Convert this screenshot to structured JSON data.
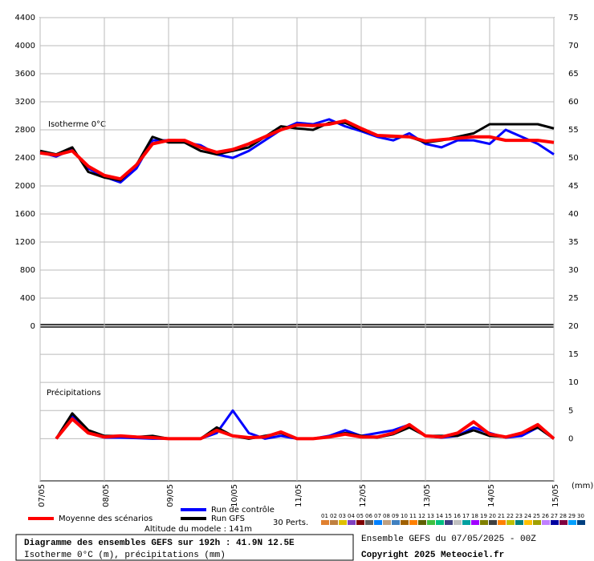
{
  "chart_data": [
    {
      "type": "line",
      "annotation": "Isotherme 0°C",
      "x": [
        0,
        6,
        12,
        18,
        24,
        30,
        36,
        42,
        48,
        54,
        60,
        66,
        72,
        78,
        84,
        90,
        96,
        102,
        108,
        114,
        120,
        126,
        132,
        138,
        144,
        150,
        156,
        162,
        168,
        174,
        180,
        186,
        192
      ],
      "xlim": [
        0,
        192
      ],
      "xticks": [
        0,
        24,
        48,
        72,
        96,
        120,
        144,
        168,
        192
      ],
      "ylim": [
        0,
        4400
      ],
      "yticks": [
        0,
        400,
        800,
        1200,
        1600,
        2000,
        2400,
        2800,
        3200,
        3600,
        4000,
        4400
      ],
      "y2lim": [
        20,
        75
      ],
      "y2ticks": [
        25,
        30,
        35,
        40,
        45,
        50,
        55,
        60,
        65,
        70,
        75
      ],
      "grid": true,
      "series": [
        {
          "name": "Run de contrôle",
          "color": "#0000ff",
          "values": [
            2480,
            2420,
            2520,
            2250,
            2130,
            2050,
            2250,
            2650,
            2650,
            2620,
            2580,
            2450,
            2400,
            2500,
            2650,
            2800,
            2900,
            2880,
            2950,
            2850,
            2780,
            2700,
            2650,
            2750,
            2600,
            2550,
            2650,
            2650,
            2600,
            2800,
            2700,
            2600,
            2450
          ]
        },
        {
          "name": "Run GFS",
          "color": "#000000",
          "values": [
            2500,
            2450,
            2550,
            2200,
            2120,
            2080,
            2300,
            2700,
            2620,
            2620,
            2500,
            2450,
            2500,
            2550,
            2700,
            2850,
            2820,
            2800,
            2900,
            2900,
            2800,
            2720,
            2700,
            2700,
            2620,
            2650,
            2700,
            2750,
            2880,
            2880,
            2880,
            2880,
            2820
          ]
        },
        {
          "name": "Moyenne des scénarios",
          "color": "#ff0000",
          "values": [
            2470,
            2440,
            2500,
            2280,
            2150,
            2100,
            2300,
            2600,
            2650,
            2650,
            2550,
            2480,
            2520,
            2600,
            2700,
            2800,
            2870,
            2860,
            2880,
            2930,
            2820,
            2720,
            2710,
            2700,
            2640,
            2660,
            2680,
            2700,
            2700,
            2650,
            2650,
            2650,
            2620
          ]
        }
      ]
    },
    {
      "type": "line",
      "annotation": "Précipitations",
      "y_label": "(mm)",
      "x": [
        0,
        6,
        12,
        18,
        24,
        30,
        36,
        42,
        48,
        54,
        60,
        66,
        72,
        78,
        84,
        90,
        96,
        102,
        108,
        114,
        120,
        126,
        132,
        138,
        144,
        150,
        156,
        162,
        168,
        174,
        180,
        186,
        192
      ],
      "xlim": [
        0,
        192
      ],
      "xticks": [
        {
          "value": 0,
          "label": "07/05"
        },
        {
          "value": 24,
          "label": "08/05"
        },
        {
          "value": 48,
          "label": "09/05"
        },
        {
          "value": 72,
          "label": "10/05"
        },
        {
          "value": 96,
          "label": "11/05"
        },
        {
          "value": 120,
          "label": "12/05"
        },
        {
          "value": 144,
          "label": "13/05"
        },
        {
          "value": 168,
          "label": "14/05"
        },
        {
          "value": 192,
          "label": "15/05"
        }
      ],
      "ylim": [
        -7.5,
        20
      ],
      "yticks": [
        0,
        5,
        10,
        15,
        20
      ],
      "ytick_side": "right",
      "grid": true,
      "series": [
        {
          "name": "Run de contrôle",
          "color": "#0000ff",
          "values": [
            null,
            0,
            4,
            1,
            0.2,
            0.2,
            0.1,
            0,
            0,
            0,
            0,
            1,
            5,
            1,
            0,
            0.5,
            0,
            0,
            0.5,
            1.5,
            0.5,
            1,
            1.5,
            2.5,
            0.5,
            0.2,
            0.5,
            2,
            1,
            0.2,
            0.5,
            2,
            0
          ]
        },
        {
          "name": "Run GFS",
          "color": "#000000",
          "values": [
            null,
            0,
            4.5,
            1.5,
            0.5,
            0.5,
            0.3,
            0.5,
            0,
            0,
            0,
            2,
            0.5,
            0,
            0.5,
            1,
            0,
            0,
            0.3,
            1,
            0.5,
            0.2,
            0.8,
            2,
            0.5,
            0.5,
            0.5,
            1.5,
            0.5,
            0.3,
            1,
            2,
            0
          ]
        },
        {
          "name": "Moyenne des scénarios",
          "color": "#ff0000",
          "values": [
            null,
            0,
            3.5,
            1,
            0.3,
            0.5,
            0.3,
            0.2,
            0,
            0,
            0,
            1.5,
            0.5,
            0.2,
            0.3,
            1.2,
            0,
            0,
            0.3,
            0.8,
            0.3,
            0.3,
            1,
            2.5,
            0.5,
            0.3,
            1,
            3,
            0.8,
            0.3,
            1,
            2.5,
            0
          ]
        }
      ]
    }
  ],
  "legend": {
    "perts_title": "30 Perts.",
    "altitude": "Altitude du modele : 141m",
    "perturbations": [
      {
        "label": "01",
        "color": "#e08030"
      },
      {
        "label": "02",
        "color": "#c08040"
      },
      {
        "label": "03",
        "color": "#e0c000"
      },
      {
        "label": "04",
        "color": "#8040c0"
      },
      {
        "label": "05",
        "color": "#800000"
      },
      {
        "label": "06",
        "color": "#606060"
      },
      {
        "label": "07",
        "color": "#0080ff"
      },
      {
        "label": "08",
        "color": "#c0a080"
      },
      {
        "label": "09",
        "color": "#4080c0"
      },
      {
        "label": "10",
        "color": "#a06000"
      },
      {
        "label": "11",
        "color": "#ff8000"
      },
      {
        "label": "12",
        "color": "#606000"
      },
      {
        "label": "13",
        "color": "#40c040"
      },
      {
        "label": "14",
        "color": "#00c080"
      },
      {
        "label": "15",
        "color": "#404080"
      },
      {
        "label": "16",
        "color": "#c0c0c0"
      },
      {
        "label": "17",
        "color": "#00a0a0"
      },
      {
        "label": "18",
        "color": "#a000ff"
      },
      {
        "label": "19",
        "color": "#808000"
      },
      {
        "label": "20",
        "color": "#404040"
      },
      {
        "label": "21",
        "color": "#ff8000"
      },
      {
        "label": "22",
        "color": "#c0c000"
      },
      {
        "label": "23",
        "color": "#008080"
      },
      {
        "label": "24",
        "color": "#ffc000"
      },
      {
        "label": "25",
        "color": "#a0a000"
      },
      {
        "label": "26",
        "color": "#c080ff"
      },
      {
        "label": "27",
        "color": "#0000a0"
      },
      {
        "label": "28",
        "color": "#800040"
      },
      {
        "label": "29",
        "color": "#00a0ff"
      },
      {
        "label": "30",
        "color": "#004080"
      }
    ]
  },
  "footer": {
    "title": "Diagramme des ensembles GEFS sur 192h : 41.9N 12.5E",
    "subtitle": "Isotherme 0°C (m), précipitations (mm)",
    "run": "Ensemble GEFS du 07/05/2025 - 00Z",
    "copyright": "Copyright 2025 Meteociel.fr"
  }
}
